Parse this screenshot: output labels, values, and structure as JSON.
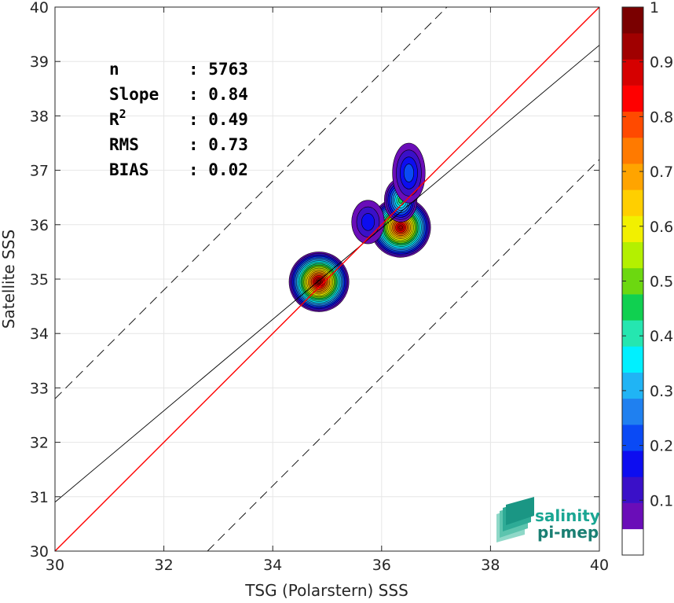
{
  "chart_data": {
    "type": "heatmap",
    "xlabel": "TSG (Polarstern) SSS",
    "ylabel": "Satellite SSS",
    "xlim": [
      30,
      40
    ],
    "ylim": [
      30,
      40
    ],
    "x_ticks": [
      "30",
      "32",
      "34",
      "36",
      "38",
      "40"
    ],
    "y_ticks": [
      "30",
      "31",
      "32",
      "33",
      "34",
      "35",
      "36",
      "37",
      "38",
      "39",
      "40"
    ],
    "grid": true,
    "stats": [
      {
        "label": "n",
        "value": ": 5763"
      },
      {
        "label": "Slope",
        "value": ": 0.84"
      },
      {
        "label": "R",
        "sup": "2",
        "value": ": 0.49"
      },
      {
        "label": "RMS",
        "value": ": 0.73"
      },
      {
        "label": "BIAS",
        "value": ": 0.02"
      }
    ],
    "reference_lines": {
      "identity": {
        "slope": 1,
        "intercept": 0,
        "color": "#ff0000"
      },
      "fit": {
        "slope": 0.84,
        "intercept": 5.7
      },
      "envelope_offsets": [
        2.8,
        -2.8
      ]
    },
    "colorbar": {
      "ticks": [
        "0.1",
        "0.2",
        "0.3",
        "0.4",
        "0.5",
        "0.6",
        "0.7",
        "0.8",
        "0.9",
        "1"
      ],
      "colors": [
        "#ffffff",
        "#6a0db8",
        "#3a10c8",
        "#0d0df0",
        "#0a4af5",
        "#1f80f0",
        "#20b4f5",
        "#00f0ff",
        "#25e6b0",
        "#10d050",
        "#6cd810",
        "#b4f000",
        "#f2f000",
        "#ffcf00",
        "#ffa400",
        "#ff7a00",
        "#ff4a00",
        "#ff0000",
        "#d60000",
        "#a00000",
        "#7a0000"
      ]
    },
    "density_blobs": [
      {
        "center": [
          34.85,
          34.95
        ],
        "radii": [
          0.55,
          0.55
        ],
        "peak": 1.0
      },
      {
        "center": [
          36.35,
          35.95
        ],
        "radii": [
          0.55,
          0.55
        ],
        "peak": 0.95
      },
      {
        "center": [
          36.35,
          36.45
        ],
        "radii": [
          0.3,
          0.4
        ],
        "peak": 0.45
      },
      {
        "center": [
          36.5,
          36.95
        ],
        "radii": [
          0.3,
          0.55
        ],
        "peak": 0.2
      },
      {
        "center": [
          35.75,
          36.05
        ],
        "radii": [
          0.3,
          0.4
        ],
        "peak": 0.15
      }
    ]
  },
  "logo": {
    "line1": "salinity",
    "line2": "pi-mep"
  },
  "colors": {
    "accent": "#1aa693",
    "identity_line": "#ff0000"
  }
}
